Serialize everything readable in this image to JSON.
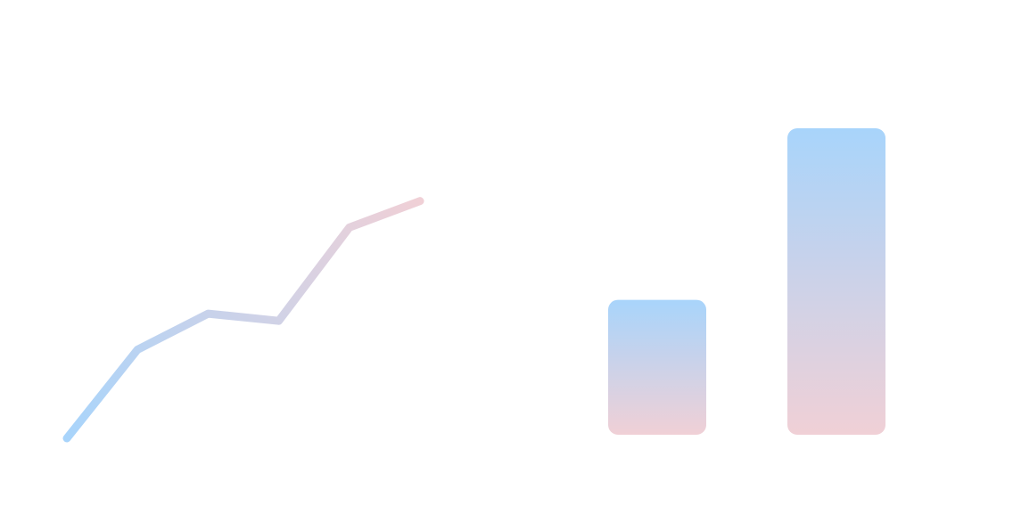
{
  "chart_data": [
    {
      "type": "line",
      "title": "",
      "xlabel": "",
      "ylabel": "",
      "x": [
        1,
        2,
        3,
        4,
        5,
        6
      ],
      "series": [
        {
          "values": [
            0,
            37,
            52,
            49,
            88,
            99
          ]
        }
      ],
      "xlim": [
        1,
        6
      ],
      "ylim": [
        0,
        100
      ],
      "grid": false,
      "colors": {
        "start": "#a8d4fb",
        "end": "#f0d0d6"
      }
    },
    {
      "type": "bar",
      "title": "",
      "xlabel": "",
      "ylabel": "",
      "categories": [
        "",
        ""
      ],
      "values": [
        44,
        100
      ],
      "ylim": [
        0,
        100
      ],
      "grid": false,
      "colors": {
        "top": "#a8d4fb",
        "bottom": "#f0d0d6"
      }
    }
  ]
}
